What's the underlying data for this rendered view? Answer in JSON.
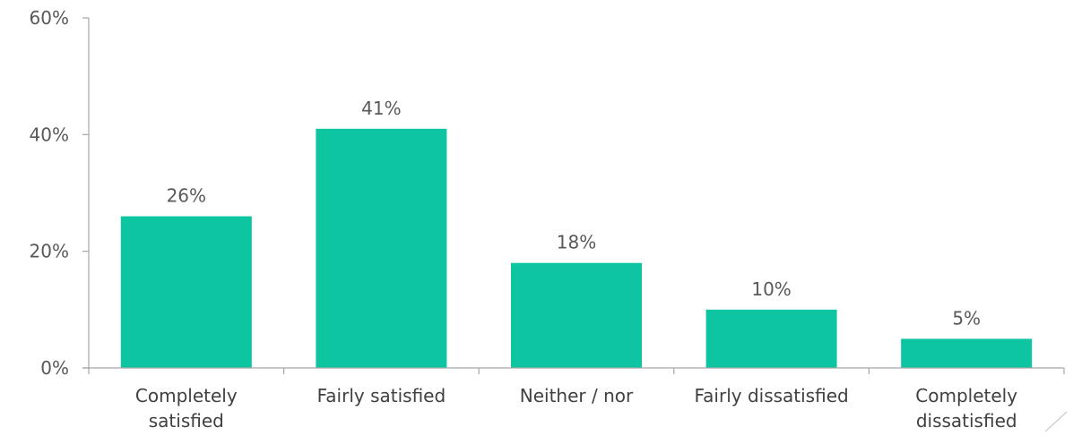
{
  "chart_data": {
    "type": "bar",
    "title": "",
    "xlabel": "",
    "ylabel": "",
    "ylim": [
      0,
      60
    ],
    "yticks": [
      {
        "value": 0,
        "label": "0%"
      },
      {
        "value": 20,
        "label": "20%"
      },
      {
        "value": 40,
        "label": "40%"
      },
      {
        "value": 60,
        "label": "60%"
      }
    ],
    "categories": [
      [
        "Completely",
        "satisfied"
      ],
      [
        "Fairly satisfied"
      ],
      [
        "Neither / nor"
      ],
      [
        "Fairly dissatisfied"
      ],
      [
        "Completely",
        "dissatisfied"
      ]
    ],
    "values": [
      26,
      41,
      18,
      10,
      5
    ],
    "data_labels": [
      "26%",
      "41%",
      "18%",
      "10%",
      "5%"
    ],
    "bar_color": "#0dc5a0",
    "grid": false,
    "legend": "none"
  }
}
